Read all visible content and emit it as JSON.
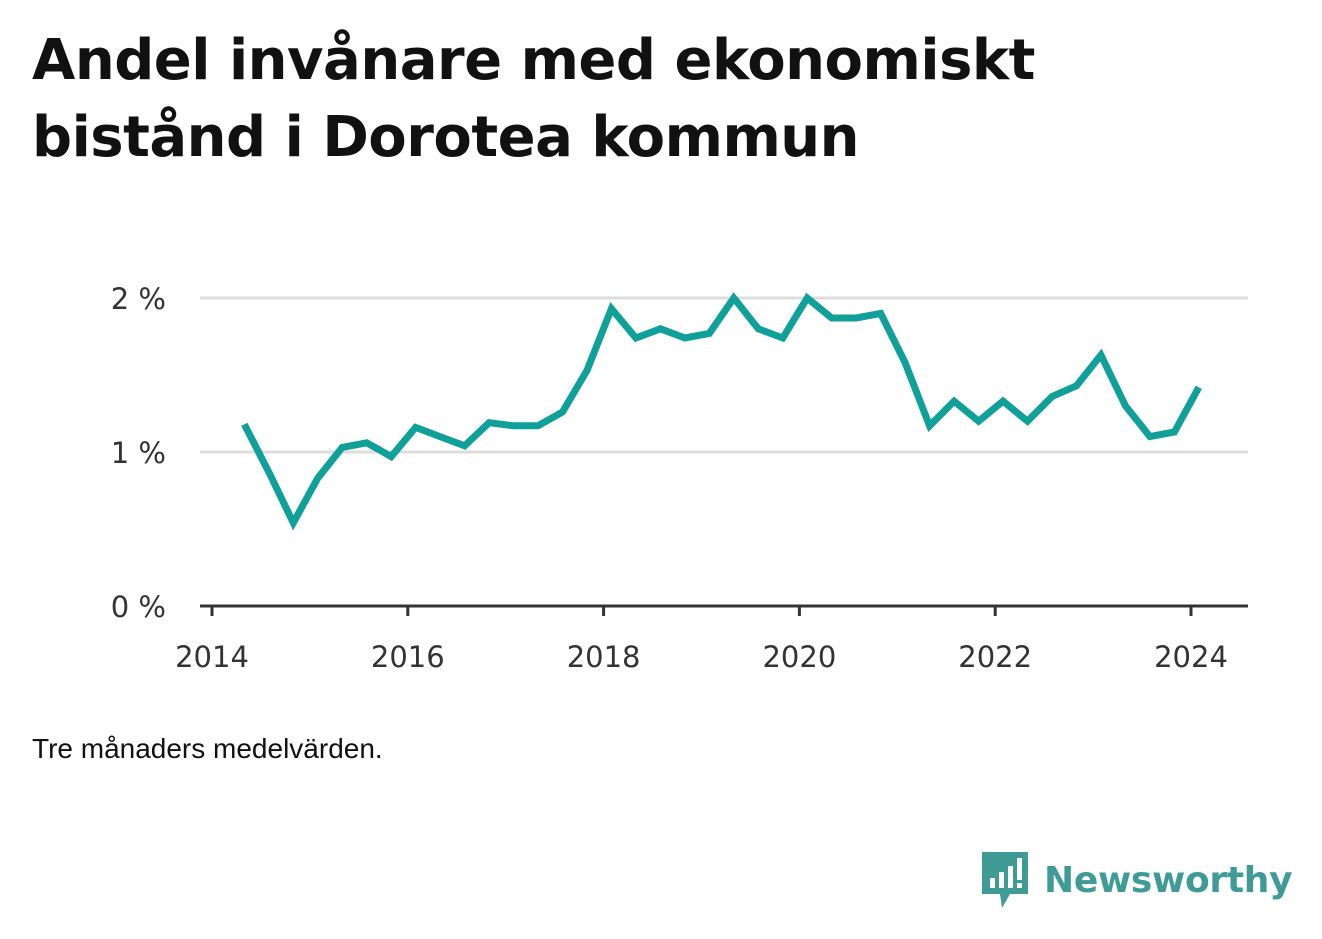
{
  "title": "Andel invånare med ekonomiskt bistånd i Dorotea kommun",
  "note": "Tre månaders medelvärden.",
  "brand": {
    "name": "Newsworthy",
    "icon": "newsworthy-logo-icon",
    "color": "#3f9b96"
  },
  "chart_data": {
    "type": "line",
    "title": "Andel invånare med ekonomiskt bistånd i Dorotea kommun",
    "xlabel": "",
    "ylabel": "",
    "x_ticks": [
      "2014",
      "2016",
      "2018",
      "2020",
      "2022",
      "2024"
    ],
    "y_ticks": [
      "0 %",
      "1 %",
      "2 %"
    ],
    "xlim": [
      2014,
      2024.5
    ],
    "ylim": [
      0,
      2
    ],
    "grid": true,
    "color": "#0fa199",
    "series": [
      {
        "x": [
          2014.33,
          2014.58,
          2014.83,
          2015.08,
          2015.33,
          2015.58,
          2015.83,
          2016.08,
          2016.33,
          2016.58,
          2016.83,
          2017.08,
          2017.33,
          2017.58,
          2017.83,
          2018.08,
          2018.33,
          2018.58,
          2018.83,
          2019.08,
          2019.33,
          2019.58,
          2019.83,
          2020.08,
          2020.33,
          2020.58,
          2020.83,
          2021.08,
          2021.33,
          2021.58,
          2021.83,
          2022.08,
          2022.33,
          2022.58,
          2022.83,
          2023.08,
          2023.33,
          2023.58,
          2023.83,
          2024.08
        ],
        "values": [
          1.18,
          0.87,
          0.54,
          0.83,
          1.03,
          1.06,
          0.97,
          1.16,
          1.1,
          1.04,
          1.19,
          1.17,
          1.17,
          1.26,
          1.53,
          1.93,
          1.74,
          1.8,
          1.74,
          1.77,
          2.0,
          1.8,
          1.74,
          2.0,
          1.87,
          1.87,
          1.9,
          1.58,
          1.17,
          1.33,
          1.2,
          1.33,
          1.2,
          1.36,
          1.43,
          1.63,
          1.3,
          1.1,
          1.13,
          1.42
        ]
      }
    ]
  }
}
